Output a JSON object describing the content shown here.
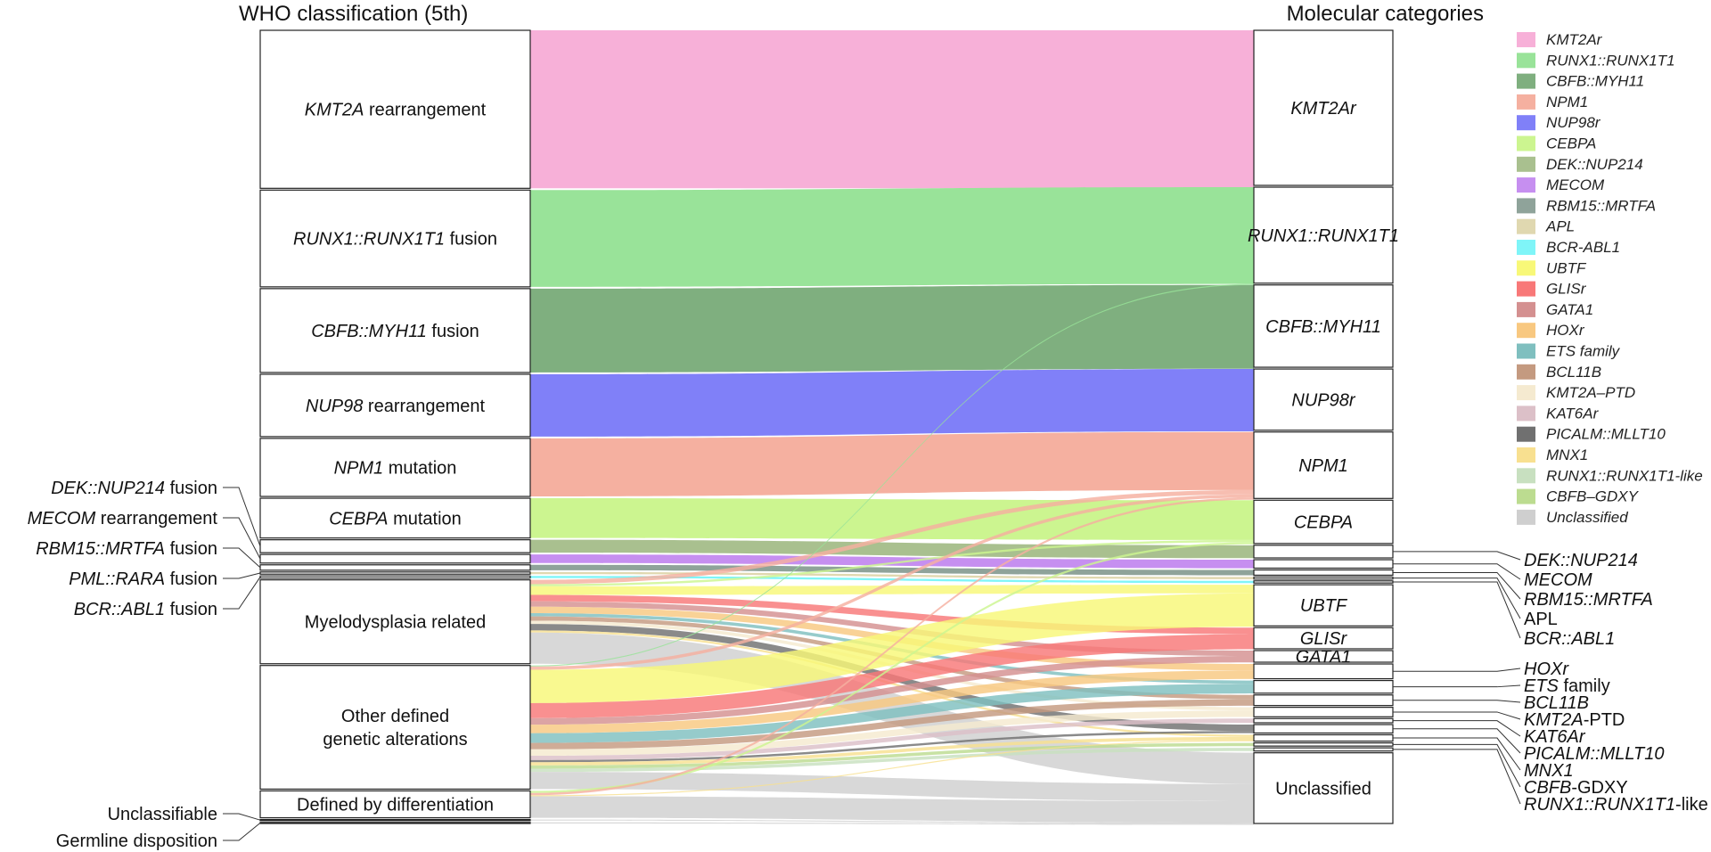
{
  "headers": {
    "left": "WHO classification (5th)",
    "right": "Molecular categories"
  },
  "who_nodes": [
    {
      "id": "kmt2a",
      "parts": [
        [
          "KMT2A",
          true
        ],
        [
          " rearrangement",
          false
        ]
      ]
    },
    {
      "id": "runx1",
      "parts": [
        [
          "RUNX1::RUNX1T1",
          true
        ],
        [
          " fusion",
          false
        ]
      ]
    },
    {
      "id": "cbfb",
      "parts": [
        [
          "CBFB::MYH11",
          true
        ],
        [
          " fusion",
          false
        ]
      ]
    },
    {
      "id": "nup98",
      "parts": [
        [
          "NUP98",
          true
        ],
        [
          " rearrangement",
          false
        ]
      ]
    },
    {
      "id": "npm1",
      "parts": [
        [
          "NPM1",
          true
        ],
        [
          " mutation",
          false
        ]
      ]
    },
    {
      "id": "cebpa",
      "parts": [
        [
          "CEBPA",
          true
        ],
        [
          " mutation",
          false
        ]
      ]
    },
    {
      "id": "dek",
      "parts": []
    },
    {
      "id": "mecom",
      "parts": []
    },
    {
      "id": "rbm15",
      "parts": []
    },
    {
      "id": "pml",
      "parts": []
    },
    {
      "id": "bcr",
      "parts": []
    },
    {
      "id": "mds",
      "parts": [
        [
          "Myelodysplasia related",
          false
        ]
      ]
    },
    {
      "id": "other",
      "parts": [
        [
          "Other defined",
          false
        ]
      ],
      "line2": [
        [
          "genetic alterations",
          false
        ]
      ]
    },
    {
      "id": "diff",
      "parts": [
        [
          "Defined by differentiation",
          false
        ]
      ]
    },
    {
      "id": "unclass",
      "parts": []
    },
    {
      "id": "germ",
      "parts": []
    }
  ],
  "who_outside_labels": [
    {
      "node": "dek",
      "parts": [
        [
          "DEK::NUP214",
          true
        ],
        [
          " fusion",
          false
        ]
      ]
    },
    {
      "node": "mecom",
      "parts": [
        [
          "MECOM",
          true
        ],
        [
          " rearrangement",
          false
        ]
      ]
    },
    {
      "node": "rbm15",
      "parts": [
        [
          "RBM15::MRTFA",
          true
        ],
        [
          " fusion",
          false
        ]
      ]
    },
    {
      "node": "pml",
      "parts": [
        [
          "PML::RARA",
          true
        ],
        [
          " fusion",
          false
        ]
      ]
    },
    {
      "node": "bcr",
      "parts": [
        [
          "BCR::ABL1",
          true
        ],
        [
          " fusion",
          false
        ]
      ]
    },
    {
      "node": "unclass",
      "parts": [
        [
          "Unclassifiable",
          false
        ]
      ]
    },
    {
      "node": "germ",
      "parts": [
        [
          "Germline disposition",
          false
        ]
      ]
    }
  ],
  "mol_nodes": [
    {
      "id": "KMT2Ar",
      "parts": [
        [
          "KMT2Ar",
          true
        ]
      ]
    },
    {
      "id": "RUNX1",
      "parts": [
        [
          "RUNX1::RUNX1T1",
          true
        ]
      ]
    },
    {
      "id": "CBFB",
      "parts": [
        [
          "CBFB::MYH11",
          true
        ]
      ]
    },
    {
      "id": "NUP98r",
      "parts": [
        [
          "NUP98r",
          true
        ]
      ]
    },
    {
      "id": "NPM1",
      "parts": [
        [
          "NPM1",
          true
        ]
      ]
    },
    {
      "id": "CEBPA",
      "parts": [
        [
          "CEBPA",
          true
        ]
      ]
    },
    {
      "id": "DEK",
      "parts": []
    },
    {
      "id": "MECOM",
      "parts": []
    },
    {
      "id": "RBM15",
      "parts": []
    },
    {
      "id": "APL",
      "parts": []
    },
    {
      "id": "BCR",
      "parts": []
    },
    {
      "id": "UBTF",
      "parts": [
        [
          "UBTF",
          true
        ]
      ]
    },
    {
      "id": "GLISr",
      "parts": [
        [
          "GLISr",
          true
        ]
      ]
    },
    {
      "id": "GATA1",
      "parts": [
        [
          "GATA1",
          true
        ]
      ]
    },
    {
      "id": "HOXr",
      "parts": []
    },
    {
      "id": "ETS",
      "parts": []
    },
    {
      "id": "BCL11B",
      "parts": []
    },
    {
      "id": "KMT2APTD",
      "parts": []
    },
    {
      "id": "KAT6Ar",
      "parts": []
    },
    {
      "id": "PICALM",
      "parts": []
    },
    {
      "id": "MNX1",
      "parts": []
    },
    {
      "id": "CBFBGDXY",
      "parts": []
    },
    {
      "id": "RUNX1like",
      "parts": []
    },
    {
      "id": "Unclassified",
      "parts": [
        [
          "Unclassified",
          false
        ]
      ]
    }
  ],
  "mol_outside_labels": [
    {
      "node": "DEK",
      "parts": [
        [
          "DEK::NUP214",
          true
        ]
      ]
    },
    {
      "node": "MECOM",
      "parts": [
        [
          "MECOM",
          true
        ]
      ]
    },
    {
      "node": "RBM15",
      "parts": [
        [
          "RBM15::MRTFA",
          true
        ]
      ]
    },
    {
      "node": "APL",
      "parts": [
        [
          "APL",
          false
        ]
      ]
    },
    {
      "node": "BCR",
      "parts": [
        [
          "BCR::ABL1",
          true
        ]
      ]
    },
    {
      "node": "HOXr",
      "parts": [
        [
          "HOXr",
          true
        ]
      ]
    },
    {
      "node": "ETS",
      "parts": [
        [
          "ETS",
          true
        ],
        [
          " family",
          false
        ]
      ]
    },
    {
      "node": "BCL11B",
      "parts": [
        [
          "BCL11B",
          true
        ]
      ]
    },
    {
      "node": "KMT2APTD",
      "parts": [
        [
          "KMT2A",
          true
        ],
        [
          "-PTD",
          false
        ]
      ]
    },
    {
      "node": "KAT6Ar",
      "parts": [
        [
          "KAT6Ar",
          true
        ]
      ]
    },
    {
      "node": "PICALM",
      "parts": [
        [
          "PICALM::MLLT10",
          true
        ]
      ]
    },
    {
      "node": "MNX1",
      "parts": [
        [
          "MNX1",
          true
        ]
      ]
    },
    {
      "node": "CBFBGDXY",
      "parts": [
        [
          "CBFB",
          true
        ],
        [
          "-GDXY",
          false
        ]
      ]
    },
    {
      "node": "RUNX1like",
      "parts": [
        [
          "RUNX1::RUNX1T1",
          true
        ],
        [
          "-like",
          false
        ]
      ]
    }
  ],
  "legend": [
    {
      "label": "KMT2Ar",
      "color": "#f7b0d8"
    },
    {
      "label": "RUNX1::RUNX1T1",
      "color": "#99e399"
    },
    {
      "label": "CBFB::MYH11",
      "color": "#7faf7f"
    },
    {
      "label": "NPM1",
      "color": "#f5b0a0"
    },
    {
      "label": "NUP98r",
      "color": "#8080f8"
    },
    {
      "label": "CEBPA",
      "color": "#ccf590"
    },
    {
      "label": "DEK::NUP214",
      "color": "#a9c08f"
    },
    {
      "label": "MECOM",
      "color": "#c68ff0"
    },
    {
      "label": "RBM15::MRTFA",
      "color": "#8fa39a"
    },
    {
      "label": "APL",
      "color": "#e0d8b0"
    },
    {
      "label": "BCR-ABL1",
      "color": "#7ff5f8"
    },
    {
      "label": "UBTF",
      "color": "#f8f878"
    },
    {
      "label": "GLISr",
      "color": "#f87878"
    },
    {
      "label": "GATA1",
      "color": "#d49090"
    },
    {
      "label": "HOXr",
      "color": "#f8c880"
    },
    {
      "label": "ETS family",
      "color": "#7fbfbf"
    },
    {
      "label": "BCL11B",
      "color": "#c49a80"
    },
    {
      "label": "KMT2A–PTD",
      "color": "#f5ead0"
    },
    {
      "label": "KAT6Ar",
      "color": "#dcc0c8"
    },
    {
      "label": "PICALM::MLLT10",
      "color": "#707070"
    },
    {
      "label": "MNX1",
      "color": "#f8e090"
    },
    {
      "label": "RUNX1::RUNX1T1-like",
      "color": "#c8e0c0"
    },
    {
      "label": "CBFB–GDXY",
      "color": "#bcdc90"
    },
    {
      "label": "Unclassified",
      "color": "#cfcfcf"
    }
  ],
  "flows": [
    {
      "from": "kmt2a",
      "to": "KMT2Ar",
      "value": 147,
      "color": "#f7b0d8"
    },
    {
      "from": "runx1",
      "to": "RUNX1",
      "value": 90,
      "color": "#99e399"
    },
    {
      "from": "cbfb",
      "to": "CBFB",
      "value": 78,
      "color": "#7faf7f"
    },
    {
      "from": "nup98",
      "to": "NUP98r",
      "value": 58,
      "color": "#8080f8"
    },
    {
      "from": "npm1",
      "to": "NPM1",
      "value": 54,
      "color": "#f5b0a0"
    },
    {
      "from": "cebpa",
      "to": "CEBPA",
      "value": 37,
      "color": "#ccf590"
    },
    {
      "from": "dek",
      "to": "DEK",
      "value": 12,
      "color": "#a9c08f"
    },
    {
      "from": "mecom",
      "to": "MECOM",
      "value": 8,
      "color": "#c68ff0"
    },
    {
      "from": "rbm15",
      "to": "RBM15",
      "value": 5,
      "color": "#8fa39a"
    },
    {
      "from": "pml",
      "to": "APL",
      "value": 2,
      "color": "#e0d8b0"
    },
    {
      "from": "bcr",
      "to": "BCR",
      "value": 2,
      "color": "#7ff5f8"
    },
    {
      "from": "mds",
      "to": "NPM1",
      "value": 4,
      "color": "#f5b0a0"
    },
    {
      "from": "mds",
      "to": "CEBPA",
      "value": 2,
      "color": "#ccf590"
    },
    {
      "from": "mds",
      "to": "UBTF",
      "value": 8,
      "color": "#f8f878"
    },
    {
      "from": "mds",
      "to": "GLISr",
      "value": 6,
      "color": "#f87878"
    },
    {
      "from": "mds",
      "to": "GATA1",
      "value": 5,
      "color": "#d49090"
    },
    {
      "from": "mds",
      "to": "HOXr",
      "value": 6,
      "color": "#f8c880"
    },
    {
      "from": "mds",
      "to": "ETS",
      "value": 3,
      "color": "#7fbfbf"
    },
    {
      "from": "mds",
      "to": "BCL11B",
      "value": 4,
      "color": "#c49a80"
    },
    {
      "from": "mds",
      "to": "KMT2APTD",
      "value": 3,
      "color": "#f5ead0"
    },
    {
      "from": "mds",
      "to": "PICALM",
      "value": 6,
      "color": "#707070"
    },
    {
      "from": "mds",
      "to": "MNX1",
      "value": 2,
      "color": "#f8e090"
    },
    {
      "from": "mds",
      "to": "Unclassified",
      "value": 29,
      "color": "#cfcfcf"
    },
    {
      "from": "other",
      "to": "RUNX1",
      "value": 1,
      "color": "#99e399"
    },
    {
      "from": "other",
      "to": "NPM1",
      "value": 3,
      "color": "#f5b0a0"
    },
    {
      "from": "other",
      "to": "UBTF",
      "value": 31,
      "color": "#f8f878"
    },
    {
      "from": "other",
      "to": "GLISr",
      "value": 14,
      "color": "#f87878"
    },
    {
      "from": "other",
      "to": "GATA1",
      "value": 6,
      "color": "#d49090"
    },
    {
      "from": "other",
      "to": "HOXr",
      "value": 8,
      "color": "#f8c880"
    },
    {
      "from": "other",
      "to": "ETS",
      "value": 9,
      "color": "#7fbfbf"
    },
    {
      "from": "other",
      "to": "BCL11B",
      "value": 6,
      "color": "#c49a80"
    },
    {
      "from": "other",
      "to": "KMT2APTD",
      "value": 6,
      "color": "#f5ead0"
    },
    {
      "from": "other",
      "to": "KAT6Ar",
      "value": 4,
      "color": "#dcc0c8"
    },
    {
      "from": "other",
      "to": "PICALM",
      "value": 2,
      "color": "#707070"
    },
    {
      "from": "other",
      "to": "MNX1",
      "value": 3,
      "color": "#f8e090"
    },
    {
      "from": "other",
      "to": "CBFBGDXY",
      "value": 3,
      "color": "#bcdc90"
    },
    {
      "from": "other",
      "to": "RUNX1like",
      "value": 3,
      "color": "#c8e0c0"
    },
    {
      "from": "other",
      "to": "Unclassified",
      "value": 16,
      "color": "#cfcfcf"
    },
    {
      "from": "diff",
      "to": "CEBPA",
      "value": 2,
      "color": "#ccf590"
    },
    {
      "from": "diff",
      "to": "NPM1",
      "value": 2,
      "color": "#f5b0a0"
    },
    {
      "from": "diff",
      "to": "MNX1",
      "value": 1,
      "color": "#f8e090"
    },
    {
      "from": "diff",
      "to": "Unclassified",
      "value": 20,
      "color": "#cfcfcf"
    },
    {
      "from": "unclass",
      "to": "Unclassified",
      "value": 1,
      "color": "#cfcfcf"
    },
    {
      "from": "germ",
      "to": "Unclassified",
      "value": 1,
      "color": "#cfcfcf"
    }
  ]
}
